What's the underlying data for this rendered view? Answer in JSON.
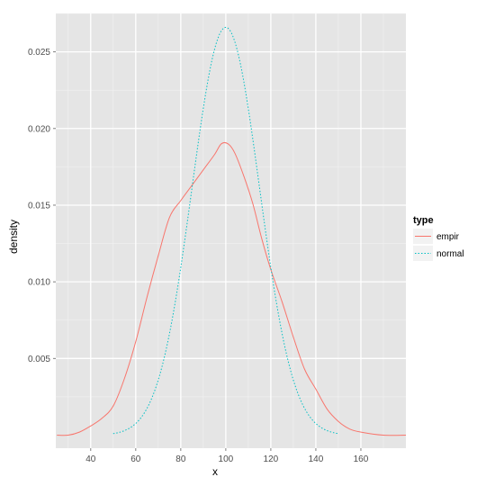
{
  "chart_data": {
    "type": "line",
    "xlabel": "x",
    "ylabel": "density",
    "xlim": [
      24.5,
      180
    ],
    "ylim": [
      -0.00085,
      0.0275
    ],
    "x_ticks": [
      40,
      60,
      80,
      100,
      120,
      140,
      160
    ],
    "y_ticks": [
      0.005,
      0.01,
      0.015,
      0.02,
      0.025
    ],
    "y_tick_labels": [
      "0.005",
      "0.010",
      "0.015",
      "0.020",
      "0.025"
    ],
    "grid": true,
    "legend": {
      "title": "type",
      "placement": "right"
    },
    "series": [
      {
        "name": "empir",
        "color": "#F8766D",
        "dash": "solid",
        "x": [
          25,
          30,
          35,
          40,
          45,
          50,
          55,
          60,
          65,
          70,
          75,
          80,
          85,
          90,
          95,
          98,
          101,
          104,
          108,
          112,
          116,
          120,
          125,
          130,
          135,
          140,
          145,
          150,
          155,
          160,
          170,
          180
        ],
        "y": [
          0.0,
          0.0,
          0.0002,
          0.0006,
          0.0011,
          0.0019,
          0.0037,
          0.0061,
          0.009,
          0.0117,
          0.0142,
          0.0153,
          0.0163,
          0.0173,
          0.0183,
          0.019,
          0.019,
          0.0184,
          0.0169,
          0.0151,
          0.0128,
          0.0108,
          0.0087,
          0.0064,
          0.0043,
          0.003,
          0.0017,
          0.0009,
          0.0004,
          0.0002,
          0.0,
          0.0
        ]
      },
      {
        "name": "normal",
        "color": "#00BFC4",
        "dash": "dotted",
        "mean": 100,
        "sd": 15,
        "range": [
          50,
          150
        ]
      }
    ]
  }
}
